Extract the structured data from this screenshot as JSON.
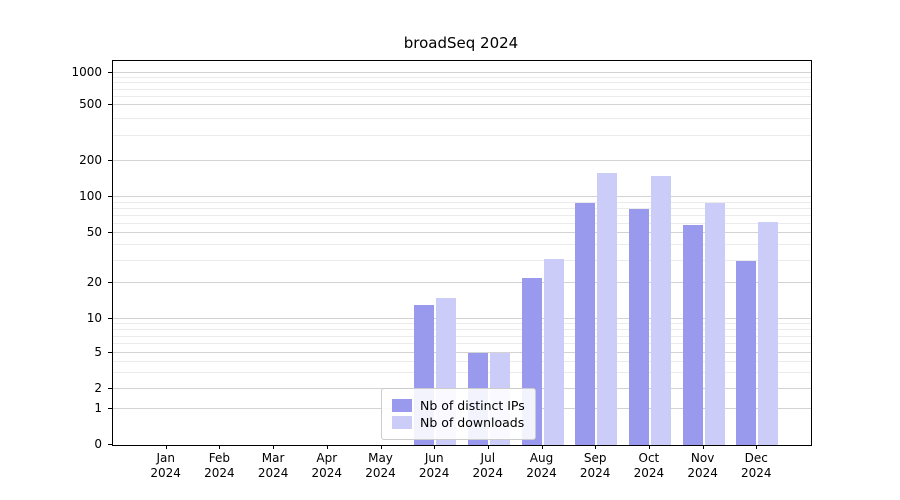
{
  "title": "broadSeq 2024",
  "legend": {
    "items": [
      {
        "label": "Nb of distinct IPs",
        "color": "#9999ee"
      },
      {
        "label": "Nb of downloads",
        "color": "#ccccf8"
      }
    ]
  },
  "chart_data": {
    "type": "bar",
    "title": "broadSeq 2024",
    "categories": [
      "Jan",
      "Feb",
      "Mar",
      "Apr",
      "May",
      "Jun",
      "Jul",
      "Aug",
      "Sep",
      "Oct",
      "Nov",
      "Dec"
    ],
    "year": "2024",
    "series": [
      {
        "name": "Nb of distinct IPs",
        "color": "#9999ee",
        "values": [
          0,
          0,
          0,
          0,
          0,
          13,
          5,
          22,
          90,
          80,
          58,
          30
        ]
      },
      {
        "name": "Nb of downloads",
        "color": "#ccccf8",
        "values": [
          0,
          0,
          0,
          0,
          0,
          15,
          5,
          31,
          160,
          150,
          90,
          62
        ]
      }
    ],
    "yticks": [
      0,
      1,
      2,
      5,
      10,
      20,
      50,
      100,
      200,
      500,
      1000
    ],
    "yscale": "symlog",
    "ylim": [
      0,
      1400
    ],
    "grid": "horizontal major and minor",
    "legend_position": "lower center inside plot",
    "xlabel": "",
    "ylabel": ""
  }
}
